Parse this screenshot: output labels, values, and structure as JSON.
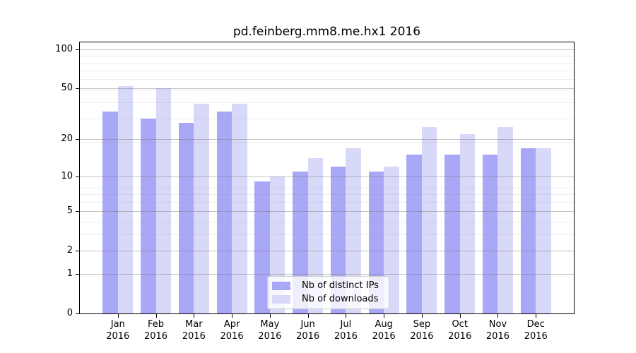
{
  "chart_data": {
    "type": "bar",
    "title": "pd.feinberg.mm8.me.hx1 2016",
    "year": "2016",
    "categories": [
      "Jan",
      "Feb",
      "Mar",
      "Apr",
      "May",
      "Jun",
      "Jul",
      "Aug",
      "Sep",
      "Oct",
      "Nov",
      "Dec"
    ],
    "series": [
      {
        "key": "distinct-ips",
        "name": "Nb of distinct IPs",
        "color": "#a8a8f6",
        "values": [
          33,
          29,
          27,
          33,
          9,
          11,
          12,
          11,
          15,
          15,
          15,
          17
        ]
      },
      {
        "key": "downloads",
        "name": "Nb of downloads",
        "color": "#d8d8f9",
        "values": [
          52,
          50,
          38,
          38,
          10,
          14,
          17,
          12,
          25,
          22,
          25,
          17
        ]
      }
    ],
    "yscale": "log1p",
    "yticks": [
      100,
      50,
      20,
      10,
      5,
      2,
      1,
      0
    ],
    "minor_gridlines": [
      3,
      4,
      6,
      7,
      8,
      19,
      29,
      39,
      49,
      59,
      69,
      79,
      89
    ],
    "ylim": [
      0,
      113
    ],
    "xlabel": "",
    "ylabel": "",
    "grid": "horizontal",
    "legend_position": "lower center"
  },
  "colors": {
    "background": "#ffffff",
    "axis": "#000000",
    "grid_major": "rgba(120,120,120,0.45)",
    "grid_minor": "rgba(140,140,140,0.16)",
    "legend_border": "#cccccc"
  }
}
